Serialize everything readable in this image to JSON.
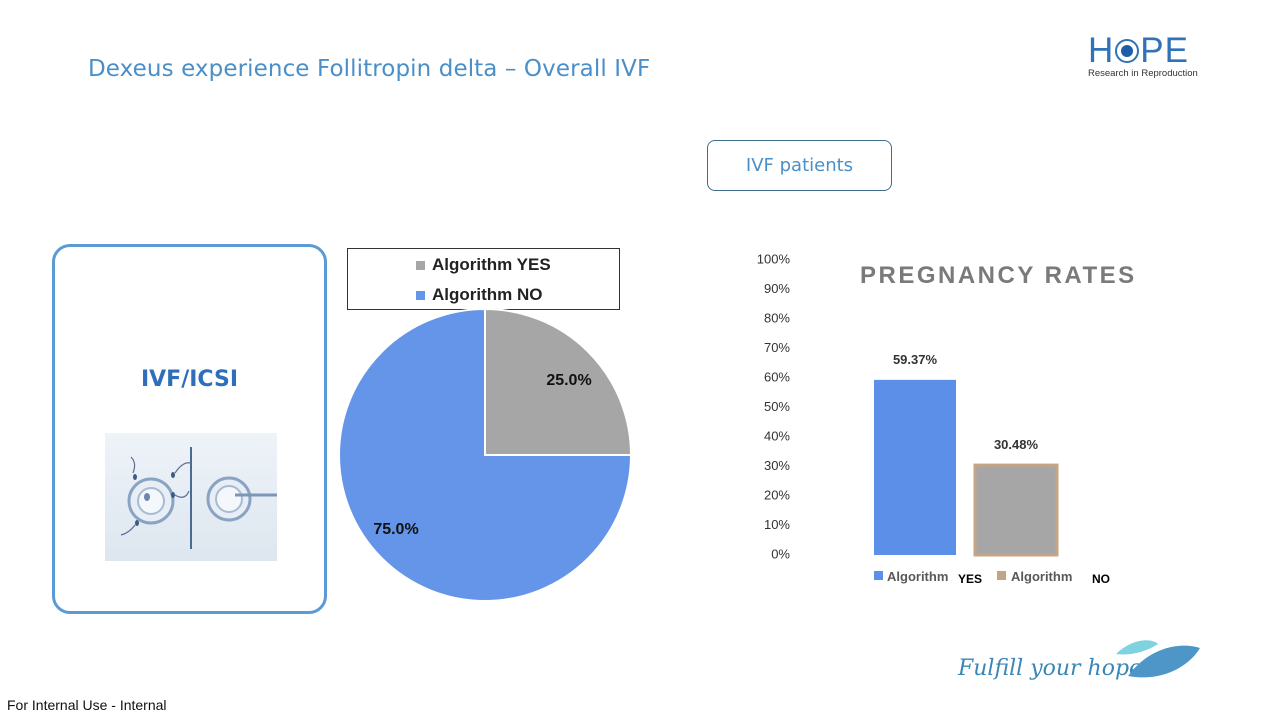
{
  "slide": {
    "title": "Dexeus experience Follitropin delta – Overall IVF",
    "logo_word": "HOPE",
    "logo_sub": "Research in Reproduction",
    "pill_label": "IVF patients",
    "box_label": "IVF/ICSI",
    "footer": "For Internal Use - Internal",
    "tagline": "Fulfill your hope",
    "image_icon": "ivf-icsi-illustration"
  },
  "colors": {
    "title": "#4a8fc8",
    "algorithm_yes_pie": "#a6a6a6",
    "algorithm_no_pie": "#6495e8",
    "bar_yes": "#5b8fe8",
    "bar_no": "#a6a6a6",
    "bar_no_border": "#c4a484"
  },
  "chart_data": [
    {
      "type": "pie",
      "legend": [
        "Algorithm YES",
        "Algorithm NO"
      ],
      "values": [
        25.0,
        75.0
      ],
      "labels": [
        "25.0%",
        "75.0%"
      ],
      "legend_position": "top"
    },
    {
      "type": "bar",
      "title": "PREGNANCY RATES",
      "categories": [
        "Algorithm YES",
        "Algorithm NO"
      ],
      "values": [
        59.37,
        30.48
      ],
      "data_labels": [
        "59.37%",
        "30.48%"
      ],
      "yticks": [
        "0%",
        "10%",
        "20%",
        "30%",
        "40%",
        "50%",
        "60%",
        "70%",
        "80%",
        "90%",
        "100%"
      ],
      "ylim": [
        0,
        100
      ],
      "legend_main": [
        "Algorithm",
        "Algorithm"
      ],
      "legend_overlay": [
        "YES",
        "NO"
      ],
      "legend_position": "bottom"
    }
  ]
}
